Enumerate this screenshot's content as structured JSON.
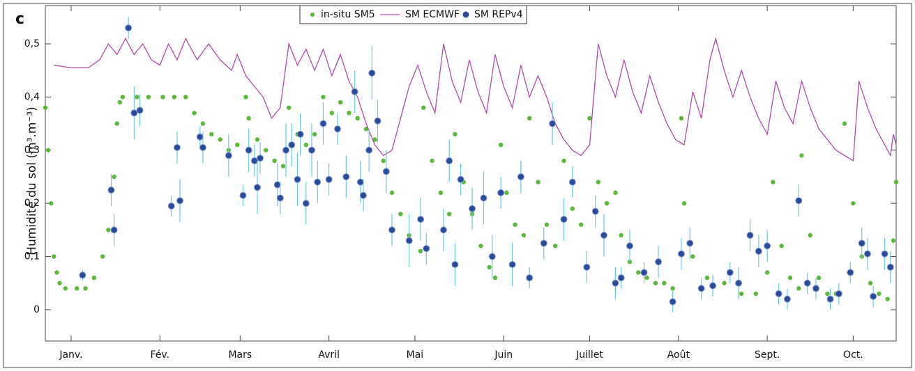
{
  "chart_data": {
    "type": "scatter",
    "panel_label": "c",
    "y_label": "Humidité du sol (m³.m⁻³)",
    "xlim": [
      -9,
      288
    ],
    "ylim": [
      -0.059,
      0.572
    ],
    "xticks": [
      {
        "value": 0,
        "label": "Janv."
      },
      {
        "value": 31,
        "label": "Fév."
      },
      {
        "value": 59,
        "label": "Mars"
      },
      {
        "value": 90,
        "label": "Avril"
      },
      {
        "value": 120,
        "label": "Mai"
      },
      {
        "value": 151,
        "label": "Juin"
      },
      {
        "value": 181,
        "label": "Juillet"
      },
      {
        "value": 212,
        "label": "Août"
      },
      {
        "value": 243,
        "label": "Sept."
      },
      {
        "value": 273,
        "label": "Oct."
      }
    ],
    "yticks": [
      0,
      {
        "value": 0.1,
        "label": "0,1"
      },
      {
        "value": 0.2,
        "label": "0,2"
      },
      {
        "value": 0.3,
        "label": "0,3"
      },
      {
        "value": 0.4,
        "label": "0,4"
      },
      {
        "value": 0.5,
        "label": "0,5"
      }
    ],
    "legend": "top",
    "series": [
      {
        "name": "in-situ SM5",
        "style": "points",
        "color": "#5cb83a",
        "x": [
          -9,
          -8,
          -7,
          -6,
          -5,
          -4,
          -2,
          2,
          5,
          8,
          11,
          13,
          15,
          16,
          17,
          18,
          23,
          27,
          32,
          36,
          40,
          43,
          46,
          49,
          52,
          55,
          58,
          61,
          62,
          65,
          68,
          71,
          74,
          76,
          79,
          82,
          85,
          88,
          91,
          94,
          97,
          100,
          103,
          106,
          109,
          112,
          115,
          118,
          122,
          123,
          126,
          129,
          132,
          134,
          137,
          140,
          143,
          146,
          148,
          150,
          152,
          155,
          158,
          160,
          163,
          166,
          169,
          172,
          175,
          178,
          181,
          184,
          187,
          190,
          192,
          195,
          198,
          201,
          204,
          207,
          210,
          213,
          214,
          217,
          222,
          228,
          234,
          239,
          243,
          245,
          248,
          251,
          254,
          255,
          258,
          261,
          264,
          267,
          270,
          273,
          276,
          279,
          282,
          285,
          287,
          288
        ],
        "values": [
          0.38,
          0.3,
          0.2,
          0.1,
          0.07,
          0.05,
          0.04,
          0.04,
          0.04,
          0.06,
          0.1,
          0.15,
          0.25,
          0.35,
          0.39,
          0.4,
          0.4,
          0.4,
          0.4,
          0.4,
          0.4,
          0.37,
          0.35,
          0.33,
          0.32,
          0.3,
          0.31,
          0.4,
          0.36,
          0.32,
          0.3,
          0.28,
          0.27,
          0.38,
          0.33,
          0.31,
          0.33,
          0.4,
          0.37,
          0.39,
          0.37,
          0.36,
          0.34,
          0.32,
          0.28,
          0.22,
          0.18,
          0.14,
          0.11,
          0.38,
          0.28,
          0.22,
          0.18,
          0.33,
          0.24,
          0.18,
          0.12,
          0.08,
          0.06,
          0.31,
          0.22,
          0.16,
          0.14,
          0.36,
          0.24,
          0.16,
          0.12,
          0.28,
          0.19,
          0.16,
          0.36,
          0.24,
          0.2,
          0.22,
          0.14,
          0.09,
          0.07,
          0.06,
          0.05,
          0.05,
          0.04,
          0.36,
          0.2,
          0.1,
          0.06,
          0.05,
          0.03,
          0.03,
          0.07,
          0.24,
          0.12,
          0.06,
          0.04,
          0.29,
          0.14,
          0.06,
          0.03,
          0.03,
          0.35,
          0.2,
          0.1,
          0.05,
          0.03,
          0.02,
          0.13,
          0.24
        ]
      },
      {
        "name": "SM ECMWF",
        "style": "line",
        "color": "#b04aa8",
        "x": [
          -6,
          0,
          6,
          10,
          13,
          16,
          19,
          22,
          25,
          28,
          31,
          34,
          37,
          40,
          44,
          48,
          52,
          56,
          58,
          61,
          64,
          67,
          70,
          73,
          76,
          79,
          82,
          85,
          88,
          91,
          94,
          97,
          100,
          103,
          106,
          109,
          112,
          115,
          118,
          121,
          124,
          127,
          130,
          133,
          136,
          139,
          142,
          145,
          148,
          151,
          154,
          157,
          160,
          163,
          166,
          169,
          172,
          175,
          178,
          181,
          184,
          187,
          190,
          193,
          196,
          199,
          202,
          205,
          208,
          211,
          214,
          217,
          220,
          223,
          225,
          228,
          231,
          234,
          237,
          240,
          243,
          246,
          249,
          252,
          255,
          258,
          261,
          264,
          267,
          270,
          273,
          275,
          278,
          281,
          284,
          286,
          287,
          288
        ],
        "values": [
          0.46,
          0.455,
          0.455,
          0.47,
          0.5,
          0.48,
          0.51,
          0.48,
          0.5,
          0.47,
          0.46,
          0.5,
          0.47,
          0.51,
          0.47,
          0.5,
          0.47,
          0.45,
          0.48,
          0.44,
          0.42,
          0.4,
          0.36,
          0.38,
          0.5,
          0.46,
          0.49,
          0.45,
          0.49,
          0.44,
          0.48,
          0.43,
          0.4,
          0.35,
          0.31,
          0.29,
          0.3,
          0.36,
          0.42,
          0.46,
          0.41,
          0.37,
          0.5,
          0.43,
          0.39,
          0.47,
          0.41,
          0.37,
          0.48,
          0.42,
          0.38,
          0.46,
          0.4,
          0.44,
          0.4,
          0.35,
          0.32,
          0.3,
          0.29,
          0.31,
          0.5,
          0.44,
          0.4,
          0.47,
          0.41,
          0.37,
          0.44,
          0.39,
          0.35,
          0.32,
          0.31,
          0.41,
          0.36,
          0.47,
          0.51,
          0.45,
          0.4,
          0.45,
          0.4,
          0.36,
          0.33,
          0.43,
          0.38,
          0.35,
          0.43,
          0.38,
          0.34,
          0.32,
          0.3,
          0.29,
          0.28,
          0.43,
          0.38,
          0.34,
          0.31,
          0.29,
          0.33,
          0.31
        ]
      },
      {
        "name": "SM REPv4",
        "style": "points-error",
        "color": "#2a4a9a",
        "error_color": "#6ac6e8",
        "x": [
          4,
          14,
          15,
          20,
          22,
          24,
          35,
          37,
          38,
          45,
          46,
          55,
          60,
          62,
          64,
          65,
          66,
          72,
          73,
          75,
          77,
          79,
          80,
          82,
          84,
          86,
          88,
          90,
          93,
          96,
          99,
          101,
          102,
          104,
          105,
          107,
          110,
          112,
          118,
          122,
          124,
          130,
          132,
          134,
          136,
          140,
          144,
          147,
          150,
          154,
          157,
          160,
          165,
          168,
          172,
          175,
          180,
          183,
          186,
          190,
          192,
          195,
          200,
          205,
          210,
          213,
          216,
          220,
          224,
          230,
          233,
          237,
          240,
          243,
          247,
          250,
          254,
          257,
          260,
          265,
          268,
          272,
          276,
          278,
          280,
          284,
          286
        ],
        "values": [
          0.065,
          0.225,
          0.15,
          0.53,
          0.37,
          0.375,
          0.195,
          0.305,
          0.205,
          0.325,
          0.305,
          0.29,
          0.215,
          0.3,
          0.28,
          0.23,
          0.285,
          0.235,
          0.21,
          0.3,
          0.31,
          0.245,
          0.33,
          0.2,
          0.3,
          0.24,
          0.35,
          0.245,
          0.34,
          0.25,
          0.41,
          0.24,
          0.215,
          0.3,
          0.445,
          0.355,
          0.26,
          0.15,
          0.13,
          0.17,
          0.115,
          0.15,
          0.28,
          0.085,
          0.245,
          0.19,
          0.21,
          0.1,
          0.22,
          0.085,
          0.25,
          0.06,
          0.125,
          0.35,
          0.17,
          0.24,
          0.08,
          0.185,
          0.14,
          0.05,
          0.06,
          0.12,
          0.07,
          0.09,
          0.015,
          0.105,
          0.125,
          0.04,
          0.045,
          0.07,
          0.05,
          0.14,
          0.11,
          0.12,
          0.03,
          0.02,
          0.205,
          0.05,
          0.04,
          0.02,
          0.03,
          0.07,
          0.125,
          0.105,
          0.025,
          0.105,
          0.08
        ],
        "errors": [
          0.01,
          0.03,
          0.03,
          0.02,
          0.05,
          0.03,
          0.02,
          0.03,
          0.04,
          0.02,
          0.03,
          0.04,
          0.02,
          0.04,
          0.03,
          0.05,
          0.03,
          0.04,
          0.03,
          0.05,
          0.04,
          0.05,
          0.04,
          0.04,
          0.05,
          0.04,
          0.04,
          0.03,
          0.03,
          0.04,
          0.04,
          0.04,
          0.03,
          0.04,
          0.05,
          0.04,
          0.04,
          0.03,
          0.05,
          0.04,
          0.03,
          0.04,
          0.04,
          0.04,
          0.03,
          0.04,
          0.05,
          0.04,
          0.03,
          0.04,
          0.03,
          0.02,
          0.03,
          0.04,
          0.04,
          0.03,
          0.03,
          0.03,
          0.04,
          0.03,
          0.02,
          0.03,
          0.02,
          0.03,
          0.02,
          0.03,
          0.03,
          0.02,
          0.02,
          0.02,
          0.03,
          0.03,
          0.03,
          0.03,
          0.02,
          0.02,
          0.03,
          0.02,
          0.02,
          0.02,
          0.02,
          0.02,
          0.03,
          0.03,
          0.02,
          0.03,
          0.03
        ]
      }
    ]
  }
}
